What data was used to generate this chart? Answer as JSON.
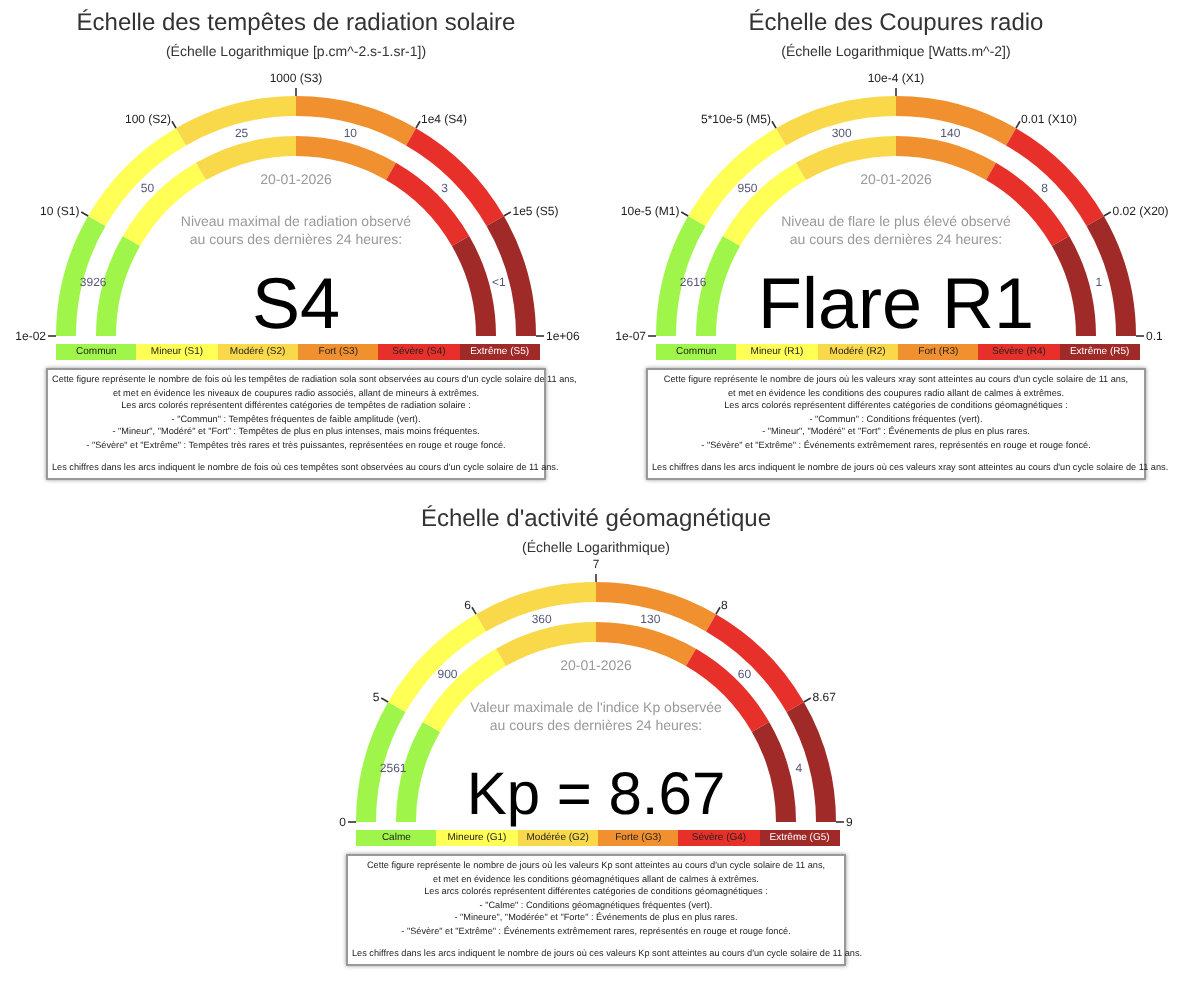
{
  "chart_data": [
    {
      "type": "other",
      "title": "Échelle des tempêtes de radiation solaire",
      "subtitle": "(Échelle Logarithmique [p.cm^-2.s-1.sr-1])",
      "categories": [
        "Commun",
        "Mineur (S1)",
        "Modéré (S2)",
        "Fort (S3)",
        "Sévère (S4)",
        "Extrême (S5)"
      ],
      "colors": [
        "#a0f54a",
        "#ffff55",
        "#f9d84a",
        "#f0902e",
        "#e8302a",
        "#a02a28"
      ],
      "values": [
        3926,
        50,
        25,
        10,
        3,
        null
      ],
      "value_labels": [
        "3926",
        "50",
        "25",
        "10",
        "3",
        "<1"
      ],
      "annotations": [
        "20-01-2026",
        "Niveau maximal de radiation observé",
        "au cours des dernières 24 heures:",
        "S4",
        "Cette figure représente le nombre de fois où les tempêtes de radiation sola sont observées au cours d'un cycle solaire de 11 ans,\net met en évidence les niveaux de coupures radio associés, allant de mineurs à extrêmes.\nLes arcs colorés représentent différentes catégories de tempêtes de radiation solaire :\n- \"Commun\" : Tempêtes fréquentes de faible amplitude (vert).\n- \"Mineur\", \"Modéré\" et \"Fort\" : Tempêtes de plus en plus intenses, mais moins fréquentes.\n- \"Sévère\" et \"Extrême\" : Tempêtes très rares et très puissantes, représentées en rouge et rouge foncé.\nLes chiffres dans les arcs indiquent le nombre de fois où ces tempêtes sont observées au cours d'un cycle solaire de 11 ans.",
        "1e-02",
        "10 (S1)",
        "100 (S2)",
        "1000 (S3)",
        "1e4 (S4)",
        "1e5 (S5)",
        "1e+06"
      ]
    },
    {
      "type": "other",
      "title": "Échelle des Coupures radio",
      "subtitle": "(Échelle Logarithmique [Watts.m^-2])",
      "categories": [
        "Commun",
        "Mineur (R1)",
        "Modéré (R2)",
        "Fort (R3)",
        "Sévère (R4)",
        "Extrême (R5)"
      ],
      "colors": [
        "#a0f54a",
        "#ffff55",
        "#f9d84a",
        "#f0902e",
        "#e8302a",
        "#a02a28"
      ],
      "values": [
        2616,
        950,
        300,
        140,
        8,
        1
      ],
      "data_labels": true,
      "annotations": [
        "20-01-2026",
        "Niveau de flare le plus élevé observé",
        "au cours des dernières 24 heures:",
        "Flare R1",
        "Cette figure représente le nombre de jours où les valeurs xray sont atteintes au cours d'un cycle solaire de 11 ans,\net met en évidence les conditions des coupures radio allant de calmes à extrêmes.\nLes arcs colorés représentent différentes catégories de conditions géomagnétiques :\n- \"Commun\" : Conditions fréquentes (vert).\n- \"Mineur\", \"Modéré\" et \"Fort\" : Événements de plus en plus rares.\n- \"Sévère\" et \"Extrême\" : Événements extrêmement rares, représentés en rouge et rouge foncé.\nLes chiffres dans les arcs indiquent le nombre de jours où ces valeurs xray sont atteintes au cours d'un cycle solaire de 11 ans.",
        "1e-07",
        "10e-5 (M1)",
        "5*10e-5 (M5)",
        "10e-4 (X1)",
        "0.01 (X10)",
        "0.02 (X20)",
        "0.1"
      ]
    },
    {
      "type": "other",
      "title": "Échelle d'activité géomagnétique",
      "subtitle": "(Échelle Logarithmique)",
      "categories": [
        "Calme",
        "Mineure (G1)",
        "Modérée (G2)",
        "Forte (G3)",
        "Sévère (G4)",
        "Extrême (G5)"
      ],
      "colors": [
        "#a0f54a",
        "#ffff55",
        "#f9d84a",
        "#f0902e",
        "#e8302a",
        "#a02a28"
      ],
      "values": [
        2561,
        900,
        360,
        130,
        60,
        4
      ],
      "data_labels": true,
      "annotations": [
        "20-01-2026",
        "Valeur maximale de l'indice Kp observée",
        "au cours des dernières 24 heures:",
        "Kp = 8.67",
        "Cette figure représente le nombre de jours où les valeurs Kp sont atteintes au cours d'un cycle solaire de 11 ans,\net met en évidence les conditions géomagnétiques allant de calmes à extrêmes.\nLes arcs colorés représentent différentes catégories de conditions géomagnétiques :\n- \"Calme\" : Conditions géomagnétiques fréquentes (vert).\n- \"Mineure\", \"Modérée\" et \"Forte\" : Événements de plus en plus rares.\n- \"Sévère\" et \"Extrême\" : Événements extrêmement rares, représentés en rouge et rouge foncé.\nLes chiffres dans les arcs indiquent le nombre de jours où ces valeurs Kp sont atteintes au cours d'un cycle solaire de 11 ans.",
        "0",
        "5",
        "6",
        "7",
        "8",
        "8.67",
        "9"
      ]
    }
  ]
}
